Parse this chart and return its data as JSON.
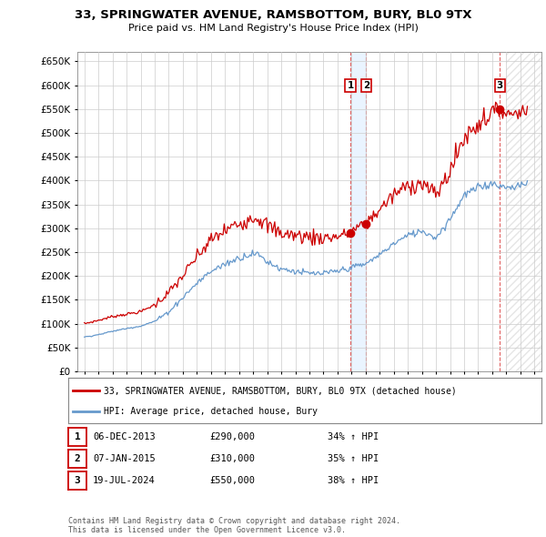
{
  "title": "33, SPRINGWATER AVENUE, RAMSBOTTOM, BURY, BL0 9TX",
  "subtitle": "Price paid vs. HM Land Registry's House Price Index (HPI)",
  "ylabel_values": [
    0,
    50000,
    100000,
    150000,
    200000,
    250000,
    300000,
    350000,
    400000,
    450000,
    500000,
    550000,
    600000,
    650000
  ],
  "ylim": [
    0,
    670000
  ],
  "xlim_start": 1994.5,
  "xlim_end": 2027.5,
  "red_color": "#cc0000",
  "blue_color": "#6699cc",
  "sale_points": [
    {
      "date": 2013.92,
      "price": 290000,
      "label": "1"
    },
    {
      "date": 2015.03,
      "price": 310000,
      "label": "2"
    },
    {
      "date": 2024.54,
      "price": 550000,
      "label": "3"
    }
  ],
  "vline_color": "#e06060",
  "shade_color": "#ddeeff",
  "legend_entries": [
    "33, SPRINGWATER AVENUE, RAMSBOTTOM, BURY, BL0 9TX (detached house)",
    "HPI: Average price, detached house, Bury"
  ],
  "table_data": [
    {
      "num": "1",
      "date": "06-DEC-2013",
      "price": "£290,000",
      "hpi": "34% ↑ HPI"
    },
    {
      "num": "2",
      "date": "07-JAN-2015",
      "price": "£310,000",
      "hpi": "35% ↑ HPI"
    },
    {
      "num": "3",
      "date": "19-JUL-2024",
      "price": "£550,000",
      "hpi": "38% ↑ HPI"
    }
  ],
  "footer": "Contains HM Land Registry data © Crown copyright and database right 2024.\nThis data is licensed under the Open Government Licence v3.0.",
  "background_color": "#ffffff",
  "grid_color": "#cccccc",
  "label_box_color": "#cc0000",
  "hatch_color": "#cccccc",
  "hatch_start": 2025.0
}
